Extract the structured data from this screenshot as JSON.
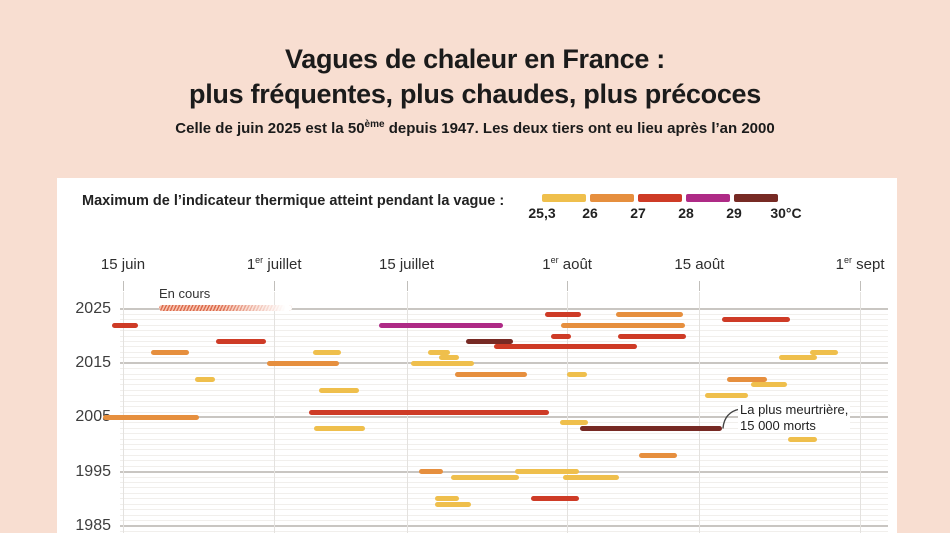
{
  "header": {
    "title_line1": "Vagues de chaleur en France :",
    "title_line2": "plus fréquentes, plus chaudes, plus précoces",
    "subtitle_pre": "Celle de juin 2025 est la 50",
    "subtitle_sup": "ème",
    "subtitle_post": " depuis 1947. Les deux tiers ont eu lieu après l’an 2000"
  },
  "legend": {
    "label": "Maximum de l’indicateur thermique atteint pendant la vague :",
    "ticks": [
      "25,3",
      "26",
      "27",
      "28",
      "29",
      "30°C"
    ]
  },
  "annotations": {
    "en_cours": "En cours",
    "deadliest_line1": "La plus meurtrière,",
    "deadliest_line2": "15 000 morts"
  },
  "chart_data": {
    "type": "bar",
    "variant": "horizontal timeline (gantt) of heat waves, one row per year, 2025 at top",
    "title": "Vagues de chaleur en France",
    "x_axis_note": "d0/d1 of each bar = days after 15 June (0 = 15 juin)",
    "x_ticks": [
      {
        "day": 0,
        "pre": "15 juin",
        "sup": "",
        "post": ""
      },
      {
        "day": 16,
        "pre": "1",
        "sup": "er",
        "post": " juillet"
      },
      {
        "day": 30,
        "pre": "15 juillet",
        "sup": "",
        "post": ""
      },
      {
        "day": 47,
        "pre": "1",
        "sup": "er",
        "post": " août"
      },
      {
        "day": 61,
        "pre": "15 août",
        "sup": "",
        "post": ""
      },
      {
        "day": 78,
        "pre": "1",
        "sup": "er",
        "post": " sept"
      }
    ],
    "y_axis": {
      "top_year": 2025,
      "labeled_years": [
        2025,
        2015,
        2005,
        1995,
        1985
      ]
    },
    "levels": [
      {
        "range": "25,3–26 °C",
        "color": "#EFBF4C"
      },
      {
        "range": "26–27 °C",
        "color": "#E68F3E"
      },
      {
        "range": "27–28 °C",
        "color": "#CE3B26"
      },
      {
        "range": "28–29 °C",
        "color": "#AE2A86"
      },
      {
        "range": "29–30 °C",
        "color": "#772A24"
      }
    ],
    "waves": [
      {
        "year": 2025,
        "bars": [
          {
            "d0": 3.8,
            "d1": 17.9,
            "lvl": 2,
            "hatched": true
          }
        ]
      },
      {
        "year": 2024,
        "bars": [
          {
            "d0": 44.6,
            "d1": 48.5,
            "lvl": 2
          },
          {
            "d0": 52.2,
            "d1": 59.3,
            "lvl": 1
          }
        ]
      },
      {
        "year": 2023,
        "bars": [
          {
            "d0": 63.4,
            "d1": 70.6,
            "lvl": 2
          }
        ]
      },
      {
        "year": 2022,
        "bars": [
          {
            "d0": -1.2,
            "d1": 1.6,
            "lvl": 2
          },
          {
            "d0": 27.1,
            "d1": 40.2,
            "lvl": 3
          },
          {
            "d0": 46.3,
            "d1": 59.5,
            "lvl": 1
          }
        ]
      },
      {
        "year": 2020,
        "bars": [
          {
            "d0": 45.3,
            "d1": 47.4,
            "lvl": 2
          },
          {
            "d0": 52.4,
            "d1": 59.6,
            "lvl": 2
          }
        ]
      },
      {
        "year": 2019,
        "bars": [
          {
            "d0": 9.8,
            "d1": 15.1,
            "lvl": 2
          },
          {
            "d0": 36.3,
            "d1": 41.3,
            "lvl": 4
          }
        ]
      },
      {
        "year": 2018,
        "bars": [
          {
            "d0": 39.3,
            "d1": 54.4,
            "lvl": 2
          }
        ]
      },
      {
        "year": 2017,
        "bars": [
          {
            "d0": 3.0,
            "d1": 7.0,
            "lvl": 1
          },
          {
            "d0": 20.1,
            "d1": 23.1,
            "lvl": 0
          },
          {
            "d0": 32.3,
            "d1": 34.6,
            "lvl": 0
          },
          {
            "d0": 72.7,
            "d1": 75.7,
            "lvl": 0
          }
        ]
      },
      {
        "year": 2016,
        "bars": [
          {
            "d0": 33.4,
            "d1": 35.6,
            "lvl": 0
          },
          {
            "d0": 69.4,
            "d1": 73.4,
            "lvl": 0
          }
        ]
      },
      {
        "year": 2015,
        "bars": [
          {
            "d0": 15.2,
            "d1": 22.9,
            "lvl": 1
          },
          {
            "d0": 30.5,
            "d1": 37.2,
            "lvl": 0
          }
        ]
      },
      {
        "year": 2013,
        "bars": [
          {
            "d0": 35.1,
            "d1": 42.8,
            "lvl": 1
          },
          {
            "d0": 47.0,
            "d1": 49.1,
            "lvl": 0
          }
        ]
      },
      {
        "year": 2012,
        "bars": [
          {
            "d0": 7.6,
            "d1": 9.7,
            "lvl": 0
          },
          {
            "d0": 63.9,
            "d1": 68.1,
            "lvl": 1
          }
        ]
      },
      {
        "year": 2011,
        "bars": [
          {
            "d0": 66.5,
            "d1": 70.3,
            "lvl": 0
          }
        ]
      },
      {
        "year": 2010,
        "bars": [
          {
            "d0": 20.7,
            "d1": 25.0,
            "lvl": 0
          }
        ]
      },
      {
        "year": 2009,
        "bars": [
          {
            "d0": 61.6,
            "d1": 66.1,
            "lvl": 0
          }
        ]
      },
      {
        "year": 2006,
        "bars": [
          {
            "d0": 19.7,
            "d1": 45.1,
            "lvl": 2
          }
        ]
      },
      {
        "year": 2005,
        "bars": [
          {
            "d0": -2.1,
            "d1": 8.0,
            "lvl": 1
          }
        ]
      },
      {
        "year": 2004,
        "bars": [
          {
            "d0": 46.2,
            "d1": 49.2,
            "lvl": 0
          }
        ]
      },
      {
        "year": 2003,
        "bars": [
          {
            "d0": 20.2,
            "d1": 25.6,
            "lvl": 0
          },
          {
            "d0": 48.4,
            "d1": 63.4,
            "lvl": 4,
            "annotated": true
          }
        ]
      },
      {
        "year": 2001,
        "bars": [
          {
            "d0": 70.4,
            "d1": 73.4,
            "lvl": 0
          }
        ]
      },
      {
        "year": 1998,
        "bars": [
          {
            "d0": 54.6,
            "d1": 58.6,
            "lvl": 1
          }
        ]
      },
      {
        "year": 1995,
        "bars": [
          {
            "d0": 31.3,
            "d1": 33.9,
            "lvl": 1
          },
          {
            "d0": 41.5,
            "d1": 48.3,
            "lvl": 0
          }
        ]
      },
      {
        "year": 1994,
        "bars": [
          {
            "d0": 34.7,
            "d1": 41.9,
            "lvl": 0
          },
          {
            "d0": 46.6,
            "d1": 52.5,
            "lvl": 0
          }
        ]
      },
      {
        "year": 1990,
        "bars": [
          {
            "d0": 33.0,
            "d1": 35.6,
            "lvl": 0
          },
          {
            "d0": 43.2,
            "d1": 48.3,
            "lvl": 2
          }
        ]
      },
      {
        "year": 1989,
        "bars": [
          {
            "d0": 33.0,
            "d1": 36.8,
            "lvl": 0
          }
        ]
      }
    ],
    "colors": {
      "page_background": "#F8DED1",
      "panel_background": "#FFFFFF",
      "ongoing_hatch": "#DC6A4C"
    }
  }
}
